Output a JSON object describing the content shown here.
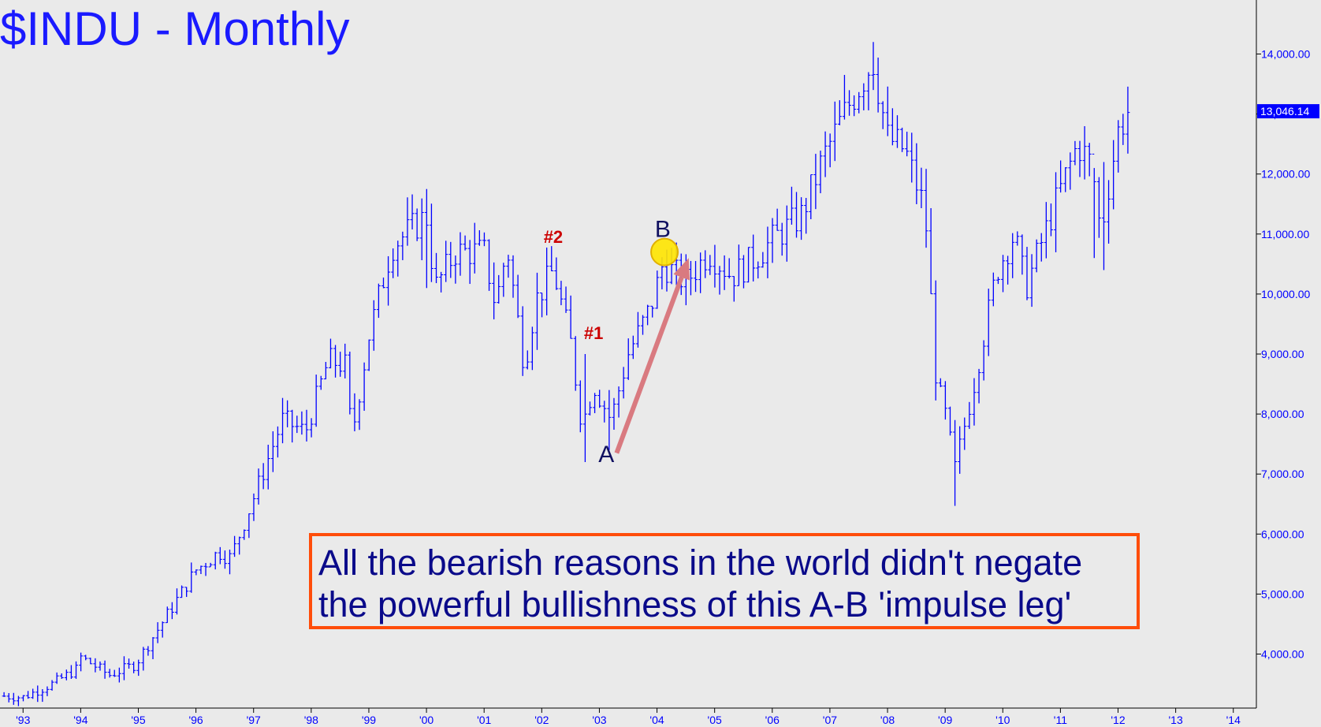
{
  "title": "$INDU - Monthly",
  "callout": {
    "line1": "All the bearish reasons in the world didn't negate",
    "line2": "the powerful bullishness of this A-B 'impulse leg'"
  },
  "colors": {
    "bars": "#0000ff",
    "title": "#1a1aff",
    "axis_text": "#0000ff",
    "callout_border": "#ff4d0a",
    "callout_text": "#0a0a8a",
    "arrow": "#d97a80",
    "marker_fill": "#ffe600",
    "marker_stroke": "#e0b000",
    "label_red": "#cc0000",
    "label_dark": "#101060"
  },
  "chart_data": {
    "type": "ohlc",
    "title": "$INDU - Monthly",
    "ylim": [
      3100,
      14900
    ],
    "xlim": [
      1992.6,
      2014.4
    ],
    "y_ticks": [
      4000,
      5000,
      6000,
      7000,
      8000,
      9000,
      10000,
      11000,
      12000,
      13000,
      14000
    ],
    "y_tick_labels": [
      "4,000.00",
      "5,000.00",
      "6,000.00",
      "7,000.00",
      "8,000.00",
      "9,000.00",
      "10,000.00",
      "11,000.00",
      "12,000.00",
      "13,000.00",
      "14,000.00"
    ],
    "x_ticks": [
      1993,
      1994,
      1995,
      1996,
      1997,
      1998,
      1999,
      2000,
      2001,
      2002,
      2003,
      2004,
      2005,
      2006,
      2007,
      2008,
      2009,
      2010,
      2011,
      2012,
      2013,
      2014
    ],
    "x_tick_labels": [
      "'93",
      "'94",
      "'95",
      "'96",
      "'97",
      "'98",
      "'99",
      "'00",
      "'01",
      "'02",
      "'03",
      "'04",
      "'05",
      "'06",
      "'07",
      "'08",
      "'09",
      "'10",
      "'11",
      "'12",
      "'13",
      "'14"
    ],
    "last_price": 13046.14,
    "last_price_label": "13,046.14",
    "close_anchors": [
      [
        1992.67,
        3300
      ],
      [
        1993.0,
        3280
      ],
      [
        1993.5,
        3500
      ],
      [
        1993.95,
        3760
      ],
      [
        1994.0,
        3950
      ],
      [
        1994.5,
        3650
      ],
      [
        1994.95,
        3830
      ],
      [
        1995.5,
        4650
      ],
      [
        1996.0,
        5400
      ],
      [
        1996.4,
        5700
      ],
      [
        1996.6,
        5600
      ],
      [
        1997.0,
        6600
      ],
      [
        1997.5,
        7900
      ],
      [
        1997.9,
        7700
      ],
      [
        1998.3,
        8900
      ],
      [
        1998.6,
        8800
      ],
      [
        1998.7,
        7600
      ],
      [
        1999.0,
        9300
      ],
      [
        1999.4,
        10800
      ],
      [
        2000.0,
        11300
      ],
      [
        2000.15,
        10100
      ],
      [
        2000.5,
        10700
      ],
      [
        2001.0,
        10700
      ],
      [
        2001.2,
        9800
      ],
      [
        2001.4,
        10800
      ],
      [
        2001.7,
        8800
      ],
      [
        2001.9,
        9900
      ],
      [
        2002.2,
        10400
      ],
      [
        2002.5,
        9200
      ],
      [
        2002.7,
        7800
      ],
      [
        2002.9,
        8500
      ],
      [
        2003.2,
        7900
      ],
      [
        2003.5,
        9000
      ],
      [
        2003.9,
        9800
      ],
      [
        2004.1,
        10500
      ],
      [
        2004.5,
        10200
      ],
      [
        2004.9,
        10700
      ],
      [
        2005.3,
        10300
      ],
      [
        2005.7,
        10600
      ],
      [
        2006.0,
        10900
      ],
      [
        2006.5,
        11300
      ],
      [
        2006.9,
        12300
      ],
      [
        2007.3,
        13100
      ],
      [
        2007.75,
        13900
      ],
      [
        2008.0,
        12600
      ],
      [
        2008.3,
        12400
      ],
      [
        2008.65,
        11400
      ],
      [
        2008.85,
        8500
      ],
      [
        2009.0,
        8000
      ],
      [
        2009.17,
        7100
      ],
      [
        2009.5,
        8500
      ],
      [
        2009.9,
        10400
      ],
      [
        2010.2,
        11000
      ],
      [
        2010.4,
        10100
      ],
      [
        2010.65,
        10800
      ],
      [
        2010.95,
        11600
      ],
      [
        2011.3,
        12500
      ],
      [
        2011.55,
        12150
      ],
      [
        2011.7,
        11000
      ],
      [
        2011.85,
        11900
      ],
      [
        2012.0,
        12700
      ],
      [
        2012.17,
        13046
      ]
    ],
    "seed_highs_lows": [
      [
        2000.03,
        11750,
        10100
      ],
      [
        2007.78,
        14200,
        13400
      ],
      [
        2009.17,
        7900,
        6470
      ],
      [
        2002.75,
        9000,
        7200
      ],
      [
        2003.17,
        8400,
        7400
      ],
      [
        2011.6,
        12100,
        10600
      ],
      [
        2011.75,
        12200,
        10400
      ]
    ],
    "annotations": [
      {
        "text": "#2",
        "x": 2002.2,
        "y": 10850,
        "color": "#cc0000"
      },
      {
        "text": "#1",
        "x": 2002.9,
        "y": 9250,
        "color": "#cc0000"
      },
      {
        "text": "A",
        "x": 2003.12,
        "y": 7200,
        "color": "#101060"
      },
      {
        "text": "B",
        "x": 2004.1,
        "y": 10950,
        "color": "#101060"
      }
    ],
    "arrow": {
      "from_x": 2003.3,
      "from_y": 7350,
      "to_x": 2004.55,
      "to_y": 10600
    },
    "marker": {
      "x": 2004.13,
      "y": 10700
    }
  }
}
